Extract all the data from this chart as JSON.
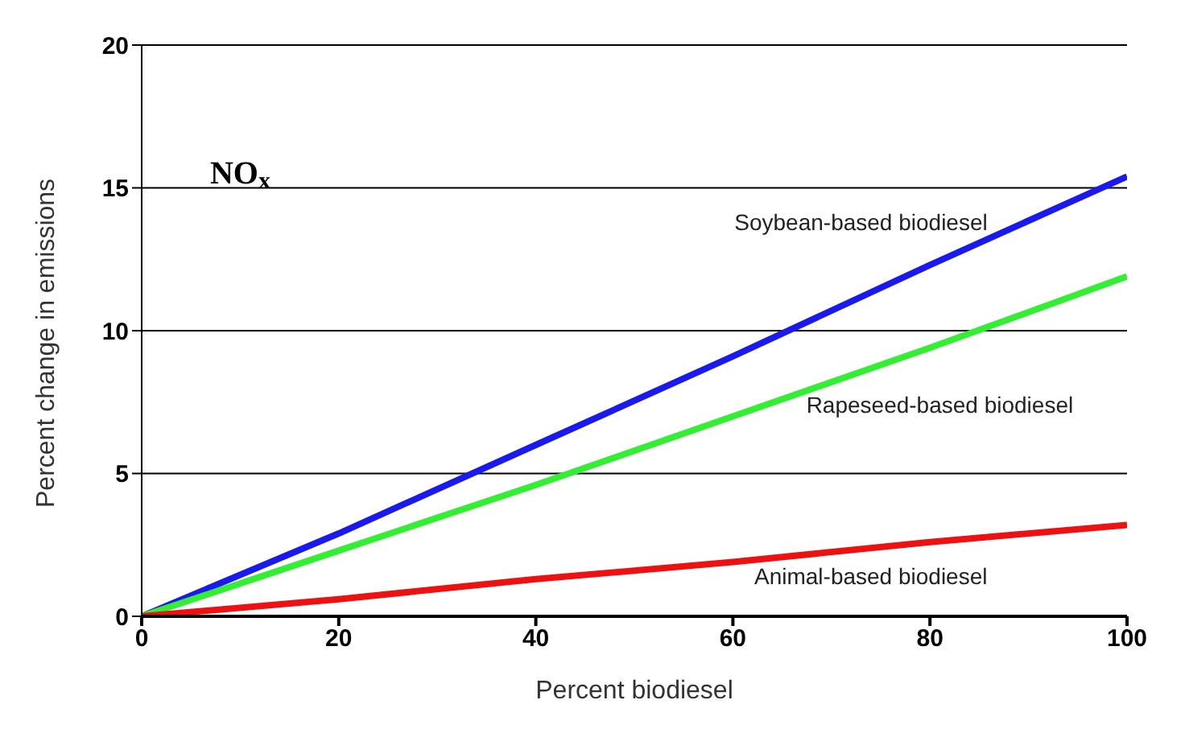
{
  "chart_data": {
    "type": "line",
    "xlabel": "Percent biodiesel",
    "ylabel": "Percent change in emissions",
    "x": [
      0,
      20,
      40,
      60,
      80,
      100
    ],
    "series": [
      {
        "name": "Soybean-based biodiesel",
        "color": "#1a1aee",
        "values": [
          0,
          2.9,
          6.0,
          9.1,
          12.3,
          15.4
        ]
      },
      {
        "name": "Rapeseed-based biodiesel",
        "color": "#33ee33",
        "values": [
          0,
          2.3,
          4.6,
          7.0,
          9.4,
          11.9
        ]
      },
      {
        "name": "Animal-based biodiesel",
        "color": "#ee1111",
        "values": [
          0,
          0.6,
          1.3,
          1.9,
          2.6,
          3.2
        ]
      }
    ],
    "annotations": [
      {
        "text": "NO$_{x}$"
      }
    ],
    "xlim": [
      0,
      100
    ],
    "xticks": [
      0,
      20,
      40,
      60,
      80,
      100
    ],
    "ylim": [
      0,
      20
    ],
    "yticks": [
      0,
      5,
      10,
      15,
      20
    ],
    "grid": "y",
    "legend": false,
    "marker": "none",
    "line_style": "solid"
  }
}
